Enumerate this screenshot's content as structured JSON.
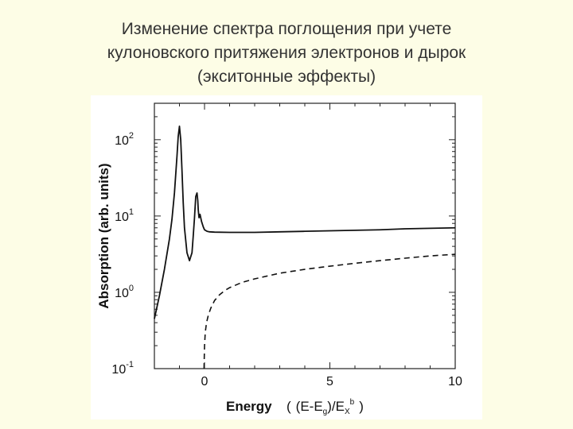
{
  "slide": {
    "title_lines": [
      "Изменение спектра поглощения при учете",
      "кулоновского притяжения электронов и дырок",
      "(экситонные эффекты)"
    ],
    "background": "#fdfde6"
  },
  "chart_data": {
    "type": "line",
    "xlabel": "Energy",
    "xlabel_formula": [
      "(E-E",
      "g",
      ")/E",
      "X",
      "b",
      ")"
    ],
    "ylabel": "Absorption (arb. units)",
    "xlim": [
      -2,
      10
    ],
    "ylim": [
      0.1,
      300
    ],
    "yscale": "log",
    "xticks": [
      0,
      5,
      10
    ],
    "yticks": [
      {
        "value": 0.1,
        "base": "10",
        "exp": "-1"
      },
      {
        "value": 1,
        "base": "10",
        "exp": "0"
      },
      {
        "value": 10,
        "base": "10",
        "exp": "1"
      },
      {
        "value": 100,
        "base": "10",
        "exp": "2"
      }
    ],
    "grid": false,
    "series": [
      {
        "style": "solid",
        "color": "#111111",
        "x": [
          -2,
          -1.8,
          -1.6,
          -1.4,
          -1.3,
          -1.2,
          -1.1,
          -1.05,
          -1.0,
          -0.95,
          -0.9,
          -0.85,
          -0.8,
          -0.7,
          -0.6,
          -0.5,
          -0.45,
          -0.4,
          -0.35,
          -0.3,
          -0.27,
          -0.25,
          -0.22,
          -0.18,
          -0.12,
          -0.05,
          0,
          0.1,
          0.2,
          0.4,
          1,
          2,
          3,
          4,
          5,
          6,
          7,
          8,
          9,
          10
        ],
        "y": [
          0.45,
          0.9,
          2.0,
          5.0,
          9,
          20,
          60,
          110,
          150,
          100,
          40,
          15,
          7,
          3.3,
          2.6,
          3.3,
          5.5,
          9.5,
          18,
          20,
          16,
          12,
          9.5,
          10.5,
          8.5,
          7.2,
          6.6,
          6.3,
          6.2,
          6.15,
          6.1,
          6.1,
          6.2,
          6.3,
          6.4,
          6.5,
          6.6,
          6.8,
          6.9,
          7.0
        ]
      },
      {
        "style": "dashed",
        "color": "#111111",
        "x": [
          -0.02,
          0,
          0.03,
          0.08,
          0.15,
          0.25,
          0.4,
          0.6,
          0.8,
          1,
          1.5,
          2,
          3,
          4,
          5,
          6,
          7,
          8,
          9,
          10
        ],
        "y": [
          0.1,
          0.2,
          0.3,
          0.4,
          0.5,
          0.62,
          0.78,
          0.93,
          1.05,
          1.15,
          1.35,
          1.5,
          1.78,
          2.0,
          2.2,
          2.4,
          2.6,
          2.8,
          3.0,
          3.15
        ]
      }
    ]
  }
}
